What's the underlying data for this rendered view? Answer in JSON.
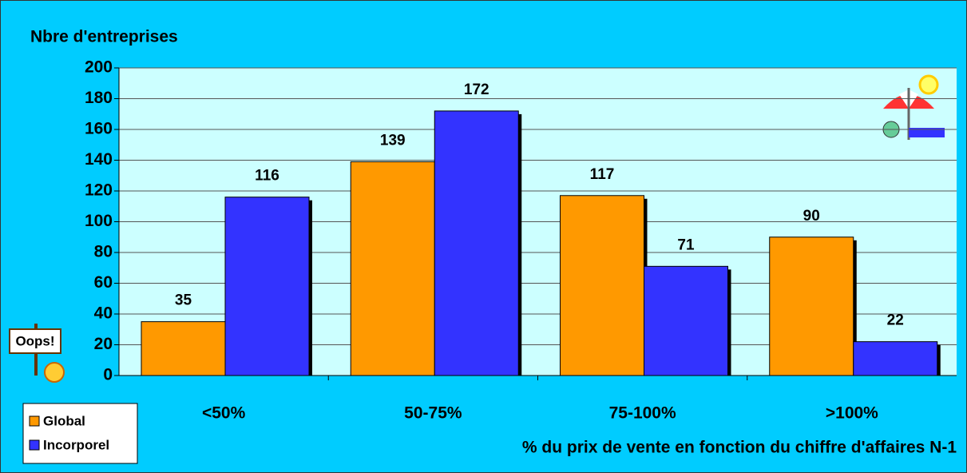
{
  "chart_data": {
    "type": "bar",
    "y_axis_title": "Nbre d'entreprises",
    "x_axis_title": "% du prix de vente en fonction du chiffre d'affaires N-1",
    "categories": [
      "<50%",
      "50-75%",
      "75-100%",
      ">100%"
    ],
    "series": [
      {
        "name": "Global",
        "color": "#ff9900",
        "values": [
          35,
          139,
          117,
          90
        ]
      },
      {
        "name": "Incorporel",
        "color": "#3333ff",
        "values": [
          116,
          172,
          71,
          22
        ]
      }
    ],
    "ylim": [
      0,
      200
    ],
    "yticks": [
      0,
      20,
      40,
      60,
      80,
      100,
      120,
      140,
      160,
      180,
      200
    ],
    "grid": true,
    "legend": "bottom-left",
    "annotation": "Oops!"
  }
}
